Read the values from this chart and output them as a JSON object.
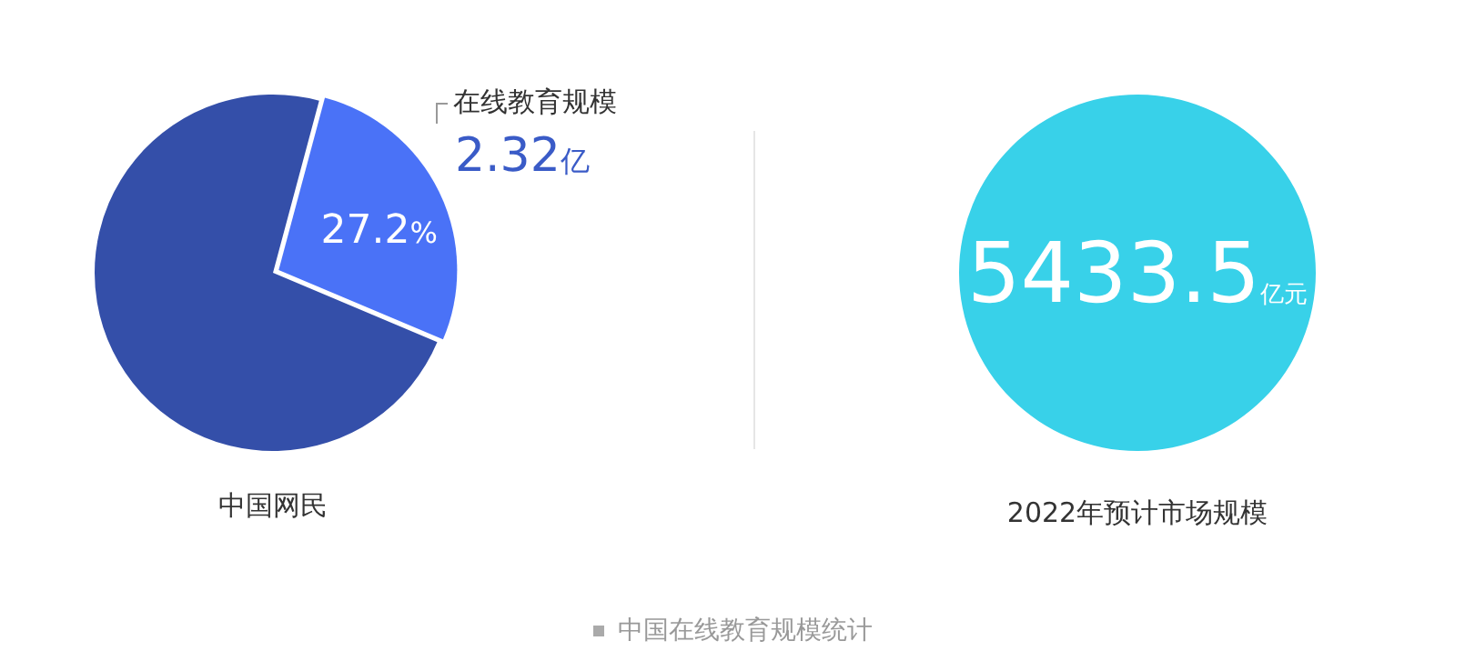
{
  "chart_data": [
    {
      "type": "pie",
      "categories": [
        "在线教育规模",
        "中国网民"
      ],
      "values": [
        27.2,
        72.8
      ],
      "colors": [
        "#4a72f7",
        "#344fa9"
      ],
      "value_labels": [
        "27.2%",
        null
      ],
      "annotations": [
        {
          "text": "2.32亿",
          "x": "在线教育规模"
        },
        "中国在线教育规模统计"
      ]
    },
    {
      "type": "other",
      "categories": [
        "2022年预计市场规模"
      ],
      "values": [
        5433.5
      ],
      "colors": [
        "#38d1e9"
      ],
      "value_labels": [
        "5433.5亿元"
      ]
    }
  ]
}
